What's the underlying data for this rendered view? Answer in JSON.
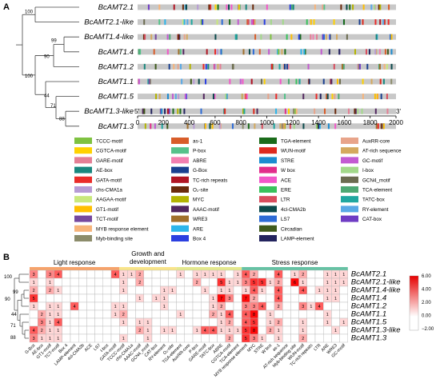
{
  "panels": {
    "a": "A",
    "b": "B"
  },
  "genes": [
    "BcAMT2.1",
    "BcAMT2.1-like",
    "BcAMT1.4-like",
    "BcAMT1.4",
    "BcAMT1.2",
    "BcAMT1.1",
    "BcAMT1.5",
    "BcAMT1.3-like",
    "BcAMT1.3"
  ],
  "bootstrap": [
    "100",
    "99",
    "90",
    "100",
    "44",
    "71",
    "88"
  ],
  "bootstrap_b": [
    "100",
    "99",
    "90",
    "71",
    "44",
    "88"
  ],
  "axis": {
    "ticks": [
      "0",
      "200",
      "400",
      "600",
      "800",
      "1000",
      "1200",
      "1400",
      "1600",
      "1800",
      "2000"
    ],
    "start": "5'",
    "end": "3'"
  },
  "legend": [
    {
      "name": "TCCC-motif",
      "color": "#7fc241"
    },
    {
      "name": "CGTCA-motif",
      "color": "#ffd200"
    },
    {
      "name": "GARE-motif",
      "color": "#e47f95"
    },
    {
      "name": "AE-box",
      "color": "#19877e"
    },
    {
      "name": "GATA-motif",
      "color": "#ea2c2a"
    },
    {
      "name": "chs-CMA1a",
      "color": "#b79bd5"
    },
    {
      "name": "AAGAA-motif",
      "color": "#c9e87c"
    },
    {
      "name": "GT1-motif",
      "color": "#ffbf00"
    },
    {
      "name": "TCT-motif",
      "color": "#76489e"
    },
    {
      "name": "MYB response element",
      "color": "#f7b47a"
    },
    {
      "name": "Myb-binding site",
      "color": "#8c8c6b"
    },
    {
      "name": "as-1",
      "color": "#d85d2a"
    },
    {
      "name": "P-box",
      "color": "#55c28a"
    },
    {
      "name": "ABRE",
      "color": "#f27fb0"
    },
    {
      "name": "G-Box",
      "color": "#1a3f8f"
    },
    {
      "name": "TC-rich repeats",
      "color": "#b01523"
    },
    {
      "name": "O₂-site",
      "color": "#6a2a0c"
    },
    {
      "name": "MYC",
      "color": "#b3b300"
    },
    {
      "name": "AAAC-motif",
      "color": "#52275f"
    },
    {
      "name": "WRE3",
      "color": "#a0702c"
    },
    {
      "name": "ARE",
      "color": "#2cb5ea"
    },
    {
      "name": "Box 4",
      "color": "#2b3fe0"
    },
    {
      "name": "TGA-element",
      "color": "#1a6b1a"
    },
    {
      "name": "WUN-motif",
      "color": "#de2a1e"
    },
    {
      "name": "STRE",
      "color": "#1d8cd0"
    },
    {
      "name": "W box",
      "color": "#e22d8b"
    },
    {
      "name": "ACE",
      "color": "#f257c9"
    },
    {
      "name": "ERE",
      "color": "#38c25c"
    },
    {
      "name": "LTR",
      "color": "#d84d5e"
    },
    {
      "name": "4cl-CMA2b",
      "color": "#0b4a4c"
    },
    {
      "name": "LS7",
      "color": "#2c6bd6"
    },
    {
      "name": "Circadian",
      "color": "#3f5a1c"
    },
    {
      "name": "LAMP-element",
      "color": "#23245e"
    },
    {
      "name": "AuxRR-core",
      "color": "#e8a48a"
    },
    {
      "name": "AT-rich sequence",
      "color": "#d4a95e"
    },
    {
      "name": "GC-motif",
      "color": "#c35bd2"
    },
    {
      "name": "I-box",
      "color": "#a3d98a"
    },
    {
      "name": "GCN4_motif",
      "color": "#6c6c50"
    },
    {
      "name": "TCA-element",
      "color": "#4ea873"
    },
    {
      "name": "TATC-box",
      "color": "#20a7a0"
    },
    {
      "name": "RY-element",
      "color": "#59a9e6"
    },
    {
      "name": "CAT-box",
      "color": "#6f3cc4"
    }
  ],
  "groups": [
    {
      "name": "Light response",
      "color": "#f6a36b"
    },
    {
      "name": "Growth and development",
      "color": "#f8e48a"
    },
    {
      "name": "Hormone response",
      "color": "#e4e88e"
    },
    {
      "name": "Stress response",
      "color": "#66c2a4"
    }
  ],
  "group_titles": {
    "growth1": "Growth and",
    "growth2": "development"
  },
  "scale": {
    "labels": [
      "6.00",
      "4.00",
      "2.00",
      "0.00",
      "−2.00"
    ]
  },
  "chart_data": {
    "type": "heatmap",
    "rows": [
      "BcAMT2.1",
      "BcAMT2.1-like",
      "BcAMT1.4-like",
      "BcAMT1.4",
      "BcAMT1.2",
      "BcAMT1.1",
      "BcAMT1.5",
      "BcAMT1.3-like",
      "BcAMT1.3"
    ],
    "columns": [
      "G-Box",
      "AE-box",
      "GT1-motif",
      "TCT-motif",
      "Box 4",
      "LAMP-element",
      "4cl-CMA2b",
      "ACE",
      "LS7",
      "I-box",
      "GATA-motif",
      "TCCC-motif",
      "chs-CMA1a",
      "AAAC-motif",
      "GCN4_motif",
      "CAT-box",
      "RY-element",
      "O₂-site",
      "TGA-element",
      "AuxRR-core",
      "P-box",
      "GARE-motif",
      "TATC-box",
      "ABRE",
      "CGTCA-motif",
      "TCA-element",
      "MYB response element",
      "MYC",
      "STRE",
      "W box",
      "as-1",
      "AT-rich sequence",
      "Myb-binding site",
      "WUN-motif",
      "TC-rich repeats",
      "LTR",
      "ARE",
      "WRE3",
      "GC-motif"
    ],
    "values": [
      [
        3,
        0,
        3,
        4,
        0,
        0,
        0,
        0,
        0,
        0,
        4,
        1,
        1,
        2,
        0,
        0,
        0,
        0,
        1,
        0,
        1,
        1,
        1,
        1,
        0,
        1,
        4,
        2,
        0,
        0,
        4,
        0,
        1,
        2,
        0,
        0,
        1,
        1,
        1
      ],
      [
        1,
        0,
        1,
        0,
        0,
        0,
        0,
        0,
        0,
        0,
        0,
        1,
        0,
        2,
        0,
        0,
        0,
        0,
        0,
        0,
        2,
        0,
        0,
        5,
        1,
        1,
        3,
        5,
        5,
        1,
        2,
        0,
        6,
        1,
        0,
        0,
        1,
        1,
        1
      ],
      [
        2,
        0,
        2,
        1,
        0,
        0,
        0,
        0,
        0,
        0,
        0,
        1,
        0,
        0,
        0,
        0,
        1,
        1,
        0,
        0,
        0,
        1,
        0,
        1,
        1,
        0,
        1,
        4,
        1,
        0,
        4,
        0,
        0,
        4,
        0,
        1,
        1,
        1,
        0
      ],
      [
        5,
        0,
        0,
        0,
        0,
        0,
        0,
        0,
        0,
        0,
        0,
        0,
        0,
        1,
        0,
        1,
        1,
        0,
        0,
        0,
        0,
        0,
        1,
        7,
        3,
        0,
        7,
        2,
        0,
        0,
        4,
        0,
        0,
        0,
        0,
        0,
        1,
        1,
        0
      ],
      [
        1,
        0,
        1,
        1,
        0,
        4,
        0,
        0,
        0,
        0,
        1,
        1,
        0,
        0,
        0,
        0,
        1,
        0,
        0,
        0,
        0,
        0,
        1,
        2,
        0,
        0,
        3,
        3,
        4,
        0,
        2,
        0,
        0,
        3,
        1,
        4,
        0,
        0,
        0
      ],
      [
        0,
        2,
        1,
        1,
        0,
        0,
        0,
        0,
        0,
        0,
        1,
        2,
        0,
        0,
        0,
        0,
        0,
        0,
        1,
        0,
        0,
        0,
        2,
        1,
        4,
        0,
        4,
        8,
        0,
        1,
        0,
        0,
        0,
        0,
        0,
        0,
        1,
        0,
        0
      ],
      [
        0,
        3,
        1,
        4,
        0,
        0,
        0,
        0,
        0,
        0,
        0,
        1,
        0,
        1,
        1,
        0,
        0,
        0,
        0,
        0,
        0,
        0,
        0,
        1,
        2,
        0,
        4,
        5,
        0,
        1,
        2,
        0,
        0,
        1,
        0,
        0,
        1,
        0,
        1
      ],
      [
        4,
        2,
        1,
        1,
        0,
        0,
        0,
        0,
        0,
        0,
        0,
        0,
        0,
        2,
        1,
        0,
        1,
        1,
        0,
        0,
        1,
        4,
        4,
        1,
        1,
        1,
        5,
        8,
        0,
        2,
        1,
        0,
        0,
        1,
        0,
        0,
        0,
        1,
        0
      ],
      [
        3,
        1,
        1,
        1,
        0,
        0,
        0,
        0,
        0,
        0,
        0,
        1,
        0,
        0,
        1,
        0,
        0,
        0,
        0,
        0,
        0,
        0,
        0,
        0,
        2,
        0,
        5,
        3,
        1,
        0,
        1,
        0,
        0,
        2,
        0,
        0,
        0,
        0,
        0
      ]
    ],
    "colorscale": {
      "min": -2,
      "max": 6
    }
  }
}
